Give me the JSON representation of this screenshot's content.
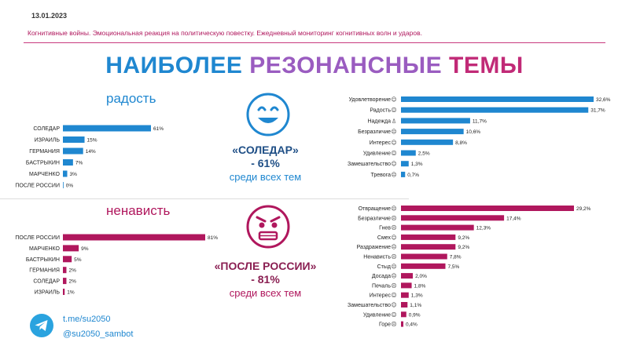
{
  "header": {
    "date": "13.01.2023",
    "subtitle": "Когнитивные войны. Эмоциональная реакция на политическую повестку. Ежедневный мониторинг когнитивных волн и ударов."
  },
  "title": {
    "part1": "НАИБОЛЕЕ",
    "part2": "РЕЗОНАНСНЫЕ",
    "part3": "ТЕМЫ"
  },
  "colors": {
    "joy": "#1f87d0",
    "hate": "#b0175d",
    "title_mid": "#9a5cc0"
  },
  "joy_section": {
    "heading": "радость",
    "face_icon": "smiling-face-icon",
    "callout_topic": "«СОЛЕДАР»",
    "callout_percent": "- 61%",
    "callout_desc": "среди всех тем"
  },
  "hate_section": {
    "heading": "ненависть",
    "face_icon": "angry-face-icon",
    "callout_topic": "«ПОСЛЕ РОССИИ»",
    "callout_percent": "- 81%",
    "callout_desc": "среди всех тем"
  },
  "footer": {
    "icon": "telegram-icon",
    "link1": "t.me/su2050",
    "link2": "@su2050_sambot"
  },
  "chart_data": [
    {
      "type": "bar",
      "orientation": "horizontal",
      "color": "#1f87d0",
      "categories": [
        "СОЛЕДАР",
        "ИЗРАИЛЬ",
        "ГЕРМАНИЯ",
        "БАСТРЫКИН",
        "МАРЧЕНКО",
        "ПОСЛЕ РОССИИ"
      ],
      "values": [
        61,
        15,
        14,
        7,
        3,
        0
      ],
      "value_labels": [
        "61%",
        "15%",
        "14%",
        "7%",
        "3%",
        "0%"
      ]
    },
    {
      "type": "bar",
      "orientation": "horizontal",
      "color": "#1f87d0",
      "categories": [
        "Удовлетворение",
        "Радость",
        "Надежда",
        "Безразличие",
        "Интерес",
        "Удивление",
        "Замешательство",
        "Тревога"
      ],
      "icons": [
        "☺",
        "☺",
        "♙",
        "☹",
        "☺",
        "☺",
        "☺",
        "☹"
      ],
      "values": [
        32.6,
        31.7,
        11.7,
        10.6,
        8.8,
        2.5,
        1.3,
        0.7
      ],
      "value_labels": [
        "32,6%",
        "31,7%",
        "11,7%",
        "10,6%",
        "8,8%",
        "2,5%",
        "1,3%",
        "0,7%"
      ]
    },
    {
      "type": "bar",
      "orientation": "horizontal",
      "color": "#b0175d",
      "categories": [
        "ПОСЛЕ РОССИИ",
        "МАРЧЕНКО",
        "БАСТРЫКИН",
        "ГЕРМАНИЯ",
        "СОЛЕДАР",
        "ИЗРАИЛЬ"
      ],
      "values": [
        81,
        9,
        5,
        2,
        2,
        1
      ],
      "value_labels": [
        "81%",
        "9%",
        "5%",
        "2%",
        "2%",
        "1%"
      ]
    },
    {
      "type": "bar",
      "orientation": "horizontal",
      "color": "#b0175d",
      "categories": [
        "Отвращение",
        "Безразличие",
        "Гнев",
        "Смех",
        "Раздражение",
        "Ненависть",
        "Стыд",
        "Досада",
        "Печаль",
        "Интерес",
        "Замешательство",
        "Удивление",
        "Горе"
      ],
      "icons": [
        "☹",
        "☹",
        "☹",
        "☺",
        "☹",
        "☹",
        "☹",
        "☹",
        "☹",
        "☺",
        "☺",
        "☺",
        "☹"
      ],
      "values": [
        29.2,
        17.4,
        12.3,
        9.2,
        9.2,
        7.8,
        7.5,
        2.0,
        1.8,
        1.3,
        1.1,
        0.9,
        0.4
      ],
      "value_labels": [
        "29,2%",
        "17,4%",
        "12,3%",
        "9,2%",
        "9,2%",
        "7,8%",
        "7,5%",
        "2,0%",
        "1,8%",
        "1,3%",
        "1,1%",
        "0,9%",
        "0,4%"
      ]
    }
  ]
}
